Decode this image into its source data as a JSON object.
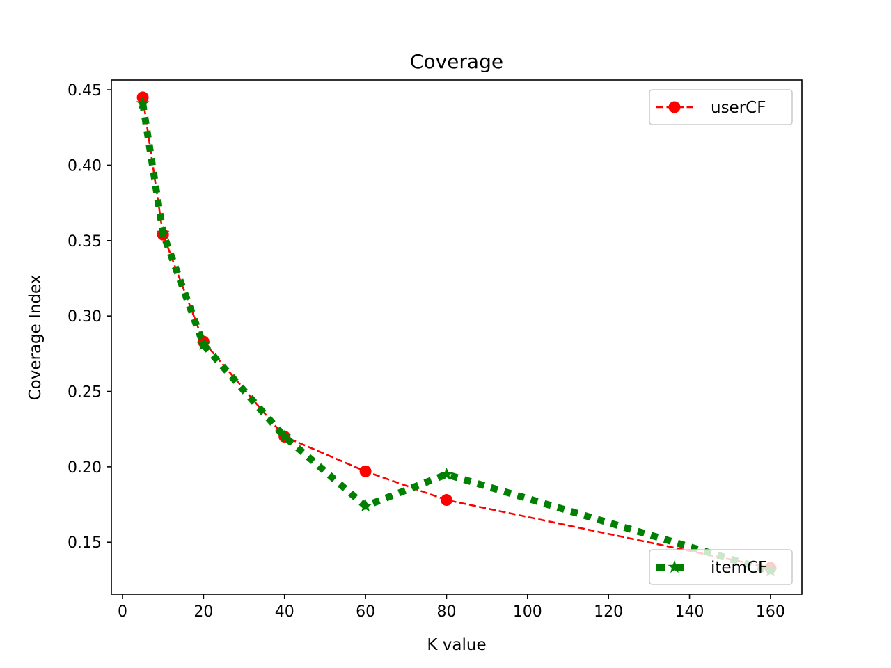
{
  "chart_data": {
    "type": "line",
    "title": "Coverage",
    "xlabel": "K value",
    "ylabel": "Coverage Index",
    "xlim": [
      -2.75,
      167.75
    ],
    "ylim": [
      0.1155,
      0.4565
    ],
    "xticks": [
      0,
      20,
      40,
      60,
      80,
      100,
      120,
      140,
      160
    ],
    "xtick_labels": [
      "0",
      "20",
      "40",
      "60",
      "80",
      "100",
      "120",
      "140",
      "160"
    ],
    "yticks": [
      0.15,
      0.2,
      0.25,
      0.3,
      0.35,
      0.4,
      0.45
    ],
    "ytick_labels": [
      "0.15",
      "0.20",
      "0.25",
      "0.30",
      "0.35",
      "0.40",
      "0.45"
    ],
    "grid": false,
    "series": [
      {
        "name": "userCF",
        "color": "#ff0000",
        "line_style": "dashed",
        "marker": "circle",
        "legend_location": "upper right",
        "x": [
          5,
          10,
          20,
          40,
          60,
          80,
          160
        ],
        "y": [
          0.445,
          0.354,
          0.283,
          0.22,
          0.197,
          0.178,
          0.133
        ]
      },
      {
        "name": "itemCF",
        "color": "#008000",
        "line_style": "dotted-thick",
        "marker": "star",
        "legend_location": "lower right",
        "x": [
          5,
          10,
          20,
          40,
          60,
          80,
          160
        ],
        "y": [
          0.441,
          0.355,
          0.281,
          0.22,
          0.174,
          0.195,
          0.131
        ]
      }
    ]
  }
}
